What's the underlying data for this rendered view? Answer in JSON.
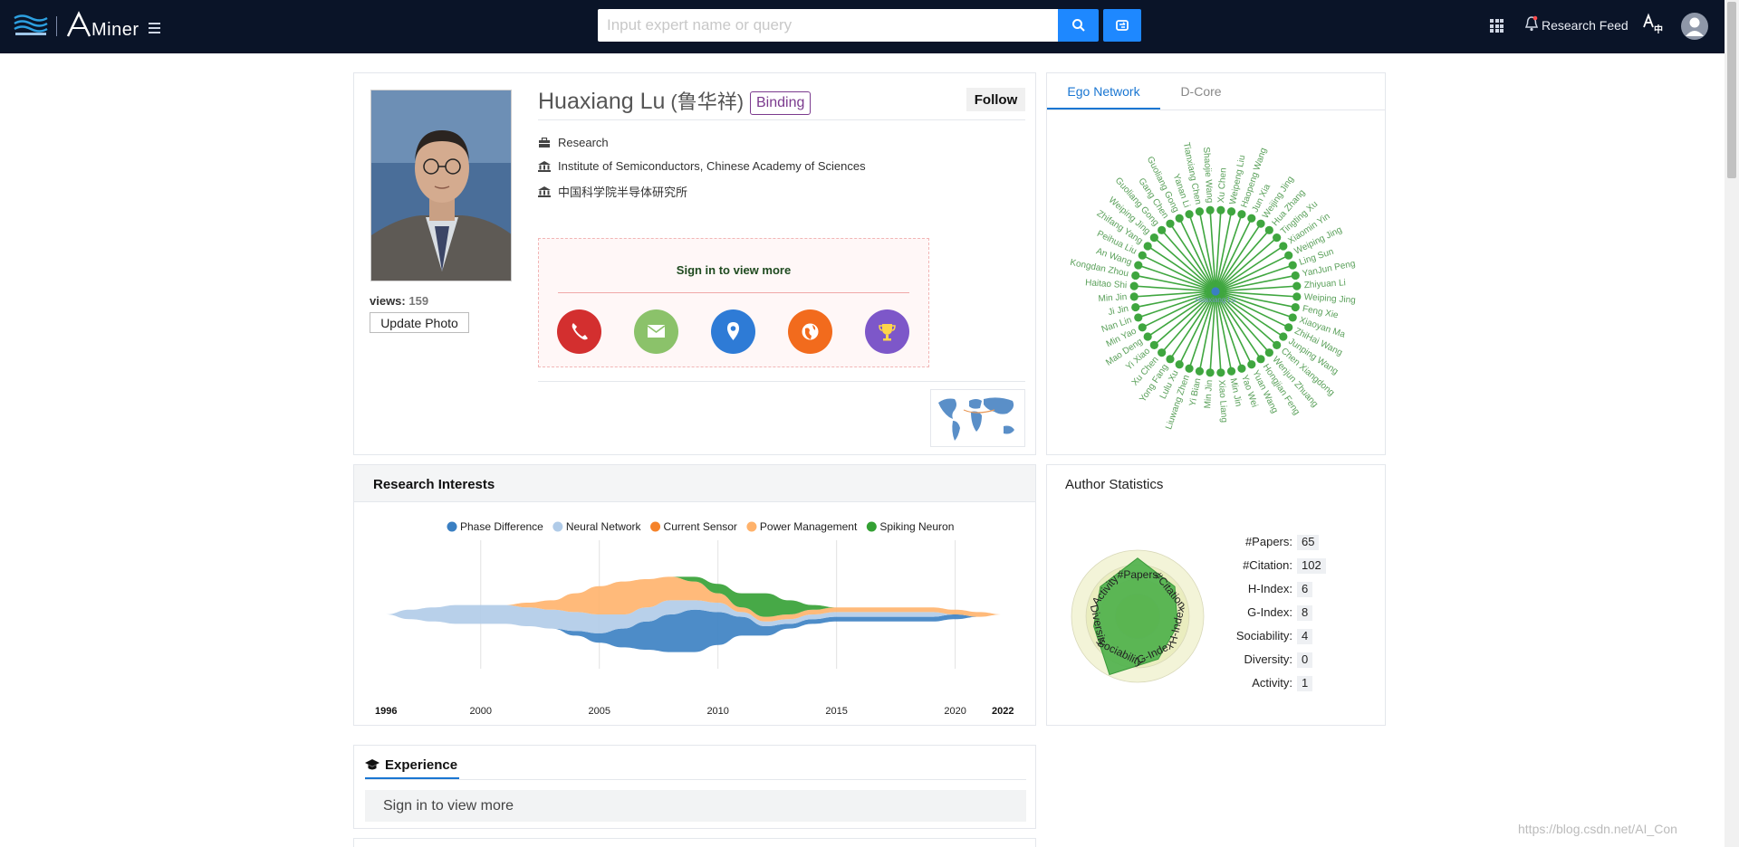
{
  "header": {
    "logo_text": "Miner",
    "search_placeholder": "Input expert name or query",
    "research_feed": "Research Feed"
  },
  "profile": {
    "name": "Huaxiang Lu",
    "name_cn": "(鲁华祥)",
    "binding_label": "Binding",
    "follow_label": "Follow",
    "views_label": "views:",
    "views_count": "159",
    "update_photo_label": "Update Photo",
    "position": "Research",
    "affiliation": "Institute of Semiconductors, Chinese Academy of Sciences",
    "affiliation_cn": "中国科学院半导体研究所",
    "signin_prompt": "Sign in to view more",
    "contacts": [
      {
        "name": "phone",
        "color": "#d32f2f"
      },
      {
        "name": "email",
        "color": "#8bc26a"
      },
      {
        "name": "location",
        "color": "#2e7bd6"
      },
      {
        "name": "homepage",
        "color": "#f26b1d"
      },
      {
        "name": "awards",
        "color": "#7d57c9"
      }
    ]
  },
  "ego_network": {
    "tabs": [
      "Ego Network",
      "D-Core"
    ],
    "center": "Huaxiang Lu",
    "coauthors": [
      "Xu Chen",
      "Weipeng Liu",
      "Haopeng Wang",
      "Jun Xia",
      "Weijing Jing",
      "Hua Zhang",
      "Tingting Xu",
      "Xiaomin Yin",
      "Weiping Jing",
      "Ling Sun",
      "YanJun Peng",
      "Zhiyuan Li",
      "Weiping Jing",
      "Feng Xie",
      "Xiaoyan Ma",
      "ZhiHai Wang",
      "Junping Wang",
      "Chen Xiangdong",
      "Wenjun Zhuang",
      "Hongjian Feng",
      "Yuan Wang",
      "Yao Wei",
      "Min Jin",
      "Xiao Liang",
      "Min Jin",
      "Yi Bian",
      "Liuwang Zhen",
      "Lulu Xu",
      "Yong Fang",
      "Xu Chen",
      "Yi Xiao",
      "Mao Deng",
      "Min Yao",
      "Nan Lin",
      "Ji Jin",
      "Min Jin",
      "Haitao Shi",
      "Kongdan Zhou",
      "An Wang",
      "Peihua Liu",
      "Zhifang Yang",
      "Weiping Jing",
      "Guoliang Gong",
      "Gang Chen",
      "Guoliang Gong",
      "Yanan Li",
      "Tianxiang Chen",
      "Shaojie Wang"
    ],
    "color": "#3fa63f",
    "label_color": "#5aa05a"
  },
  "research_interests": {
    "title": "Research Interests"
  },
  "chart_data": {
    "type": "area",
    "title": "",
    "x_start": 1996,
    "x_end": 2022,
    "x_ticks": [
      2000,
      2005,
      2010,
      2015,
      2020
    ],
    "series": [
      {
        "name": "Phase Difference",
        "color": "#3a7fc2",
        "values": [
          0,
          0,
          0,
          0,
          0,
          0,
          0,
          0,
          1,
          2,
          4,
          6,
          8,
          9,
          7,
          4,
          2,
          1,
          1,
          1,
          1,
          1,
          1,
          1,
          1,
          0,
          0
        ]
      },
      {
        "name": "Neural Network",
        "color": "#b0cbe8",
        "values": [
          0,
          2,
          3,
          4,
          4,
          4,
          4,
          4,
          4,
          4,
          3,
          3,
          3,
          2,
          2,
          1,
          1,
          1,
          1,
          1,
          1,
          1,
          1,
          1,
          0,
          0,
          0
        ]
      },
      {
        "name": "Current Sensor",
        "color": "#f5832a",
        "values": [
          0,
          0,
          0,
          0,
          0,
          0,
          0,
          0,
          0,
          0,
          0,
          0,
          0,
          0,
          0,
          0,
          0,
          0,
          0,
          0,
          0,
          0,
          0,
          0,
          0,
          0,
          0
        ]
      },
      {
        "name": "Power Management",
        "color": "#ffb26b",
        "values": [
          0,
          0,
          0,
          0,
          0,
          0,
          1,
          2,
          4,
          6,
          7,
          6,
          5,
          4,
          2,
          1,
          1,
          1,
          1,
          1,
          1,
          1,
          1,
          1,
          1,
          1,
          0
        ]
      },
      {
        "name": "Spiking Neuron",
        "color": "#33a033",
        "values": [
          0,
          0,
          0,
          0,
          0,
          0,
          0,
          0,
          0,
          0,
          0,
          0,
          0,
          1,
          2,
          3,
          5,
          3,
          1,
          0,
          0,
          0,
          0,
          0,
          0,
          0,
          0
        ]
      }
    ]
  },
  "author_stats": {
    "title": "Author Statistics",
    "items": [
      {
        "label": "#Papers:",
        "value": "65"
      },
      {
        "label": "#Citation:",
        "value": "102"
      },
      {
        "label": "H-Index:",
        "value": "6"
      },
      {
        "label": "G-Index:",
        "value": "8"
      },
      {
        "label": "Sociability:",
        "value": "4"
      },
      {
        "label": "Diversity:",
        "value": "0"
      },
      {
        "label": "Activity:",
        "value": "1"
      }
    ],
    "radar_axes": [
      "#Papers",
      "#Citation",
      "H-Index",
      "G-Index",
      "Sociability",
      "Diversity",
      "Activity"
    ],
    "radar_values": [
      0.88,
      0.72,
      0.62,
      0.72,
      0.98,
      0.68,
      0.72
    ]
  },
  "experience": {
    "title": "Experience",
    "signin_prompt": "Sign in to view more"
  },
  "watermark": "https://blog.csdn.net/AI_Con"
}
